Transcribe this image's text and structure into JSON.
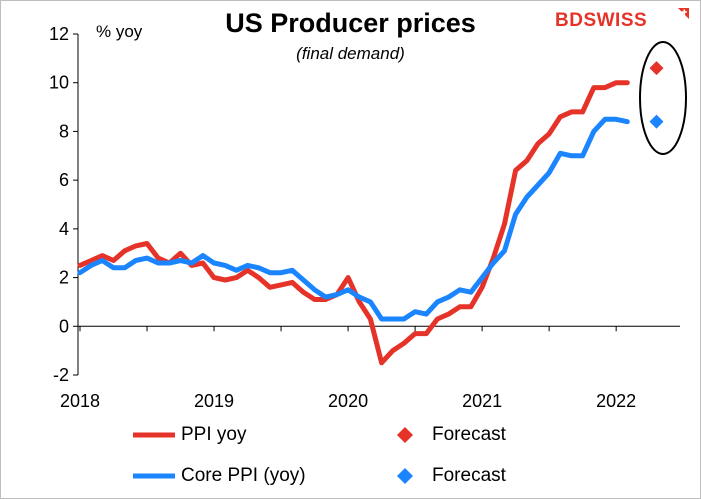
{
  "chart_data": {
    "type": "line",
    "title": "US Producer prices",
    "subtitle": "(final demand)",
    "ylabel": "% yoy",
    "xlabel": "",
    "ylim": [
      -2,
      12
    ],
    "yticks": [
      -2,
      0,
      2,
      4,
      6,
      8,
      10,
      12
    ],
    "xlim": [
      "2018-01",
      "2022-04"
    ],
    "xticks": [
      {
        "date": "2018-01",
        "label": "2018"
      },
      {
        "date": "2019-01",
        "label": "2019"
      },
      {
        "date": "2020-01",
        "label": "2020"
      },
      {
        "date": "2021-01",
        "label": "2021"
      },
      {
        "date": "2022-01",
        "label": "2022"
      }
    ],
    "grid": false,
    "legend_position": "bottom",
    "series": [
      {
        "name": "PPI yoy",
        "color": "#e63329",
        "style": "line",
        "x": [
          "2018-01",
          "2018-02",
          "2018-03",
          "2018-04",
          "2018-05",
          "2018-06",
          "2018-07",
          "2018-08",
          "2018-09",
          "2018-10",
          "2018-11",
          "2018-12",
          "2019-01",
          "2019-02",
          "2019-03",
          "2019-04",
          "2019-05",
          "2019-06",
          "2019-07",
          "2019-08",
          "2019-09",
          "2019-10",
          "2019-11",
          "2019-12",
          "2020-01",
          "2020-02",
          "2020-03",
          "2020-04",
          "2020-05",
          "2020-06",
          "2020-07",
          "2020-08",
          "2020-09",
          "2020-10",
          "2020-11",
          "2020-12",
          "2021-01",
          "2021-02",
          "2021-03",
          "2021-04",
          "2021-05",
          "2021-06",
          "2021-07",
          "2021-08",
          "2021-09",
          "2021-10",
          "2021-11",
          "2021-12",
          "2022-01",
          "2022-02"
        ],
        "values": [
          2.5,
          2.7,
          2.9,
          2.7,
          3.1,
          3.3,
          3.4,
          2.8,
          2.6,
          3.0,
          2.5,
          2.6,
          2.0,
          1.9,
          2.0,
          2.3,
          2.0,
          1.6,
          1.7,
          1.8,
          1.4,
          1.1,
          1.1,
          1.3,
          2.0,
          1.0,
          0.3,
          -1.5,
          -1.0,
          -0.7,
          -0.3,
          -0.3,
          0.3,
          0.5,
          0.8,
          0.8,
          1.6,
          2.8,
          4.2,
          6.4,
          6.8,
          7.5,
          7.9,
          8.6,
          8.8,
          8.8,
          9.8,
          9.8,
          10.0,
          10.0
        ]
      },
      {
        "name": "Forecast",
        "color": "#e63329",
        "style": "marker",
        "x": [
          "2022-03"
        ],
        "values": [
          10.6
        ]
      },
      {
        "name": "Core PPI (yoy)",
        "color": "#1a85ff",
        "style": "line",
        "x": [
          "2018-01",
          "2018-02",
          "2018-03",
          "2018-04",
          "2018-05",
          "2018-06",
          "2018-07",
          "2018-08",
          "2018-09",
          "2018-10",
          "2018-11",
          "2018-12",
          "2019-01",
          "2019-02",
          "2019-03",
          "2019-04",
          "2019-05",
          "2019-06",
          "2019-07",
          "2019-08",
          "2019-09",
          "2019-10",
          "2019-11",
          "2019-12",
          "2020-01",
          "2020-02",
          "2020-03",
          "2020-04",
          "2020-05",
          "2020-06",
          "2020-07",
          "2020-08",
          "2020-09",
          "2020-10",
          "2020-11",
          "2020-12",
          "2021-01",
          "2021-02",
          "2021-03",
          "2021-04",
          "2021-05",
          "2021-06",
          "2021-07",
          "2021-08",
          "2021-09",
          "2021-10",
          "2021-11",
          "2021-12",
          "2022-01",
          "2022-02"
        ],
        "values": [
          2.2,
          2.5,
          2.7,
          2.4,
          2.4,
          2.7,
          2.8,
          2.6,
          2.6,
          2.7,
          2.6,
          2.9,
          2.6,
          2.5,
          2.3,
          2.5,
          2.4,
          2.2,
          2.2,
          2.3,
          1.9,
          1.5,
          1.2,
          1.3,
          1.5,
          1.2,
          1.0,
          0.3,
          0.3,
          0.3,
          0.6,
          0.5,
          1.0,
          1.2,
          1.5,
          1.4,
          2.0,
          2.6,
          3.1,
          4.6,
          5.3,
          5.8,
          6.3,
          7.1,
          7.0,
          7.0,
          8.0,
          8.5,
          8.5,
          8.4
        ]
      },
      {
        "name": "Forecast",
        "color": "#1a85ff",
        "style": "marker",
        "x": [
          "2022-03"
        ],
        "values": [
          8.4
        ]
      }
    ],
    "annotations": [
      {
        "type": "ellipse-highlight",
        "around": "forecasts"
      }
    ]
  },
  "logo": {
    "part1": "BD",
    "part2": "SWISS"
  }
}
